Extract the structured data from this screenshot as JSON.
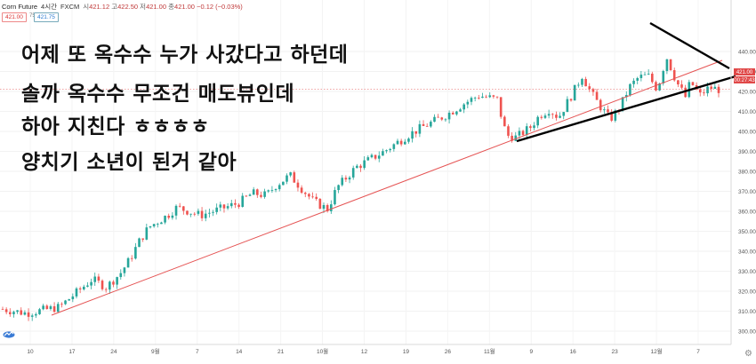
{
  "header": {
    "symbol": "Corn Future",
    "interval": "4시간",
    "exchange": "FXCM",
    "open_label": "시",
    "open": "421.12",
    "high_label": "고",
    "high": "422.50",
    "low_label": "저",
    "low": "421.00",
    "close_label": "종",
    "close": "421.00",
    "change": "−0.12 (−0.03%)",
    "sell_price": "421.00",
    "spread": "75",
    "buy_price": "421.75"
  },
  "overlay_text": [
    "어제 또 옥수수 누가 사갔다고 하던데",
    "솔까 옥수수 무조건 매도뷰인데",
    "하아 지친다 ㅎㅎㅎㅎ",
    "양치기 소년이 된거 같아"
  ],
  "price_tags": {
    "last": "421.00",
    "countdown": "00:27:43"
  },
  "colors": {
    "up": "#26a69a",
    "down": "#ef5350",
    "trendline": "#e55353",
    "price_tag": "#e04848",
    "countdown_tag": "#e04848"
  },
  "chart_data": {
    "type": "candlestick",
    "ylim": [
      296,
      446
    ],
    "y_ticks": [
      300,
      310,
      320,
      330,
      340,
      350,
      360,
      370,
      380,
      390,
      400,
      410,
      420,
      430,
      440
    ],
    "x_tick_labels": [
      "10",
      "17",
      "24",
      "9월",
      "7",
      "14",
      "21",
      "10월",
      "12",
      "19",
      "26",
      "11월",
      "9",
      "16",
      "23",
      "12월",
      "7"
    ],
    "last_price": 421.0,
    "price_path": [
      [
        0,
        311
      ],
      [
        5,
        309
      ],
      [
        12,
        312
      ],
      [
        15,
        318
      ],
      [
        19,
        326
      ],
      [
        22,
        322
      ],
      [
        25,
        329
      ],
      [
        27,
        336
      ],
      [
        29,
        345
      ],
      [
        31,
        352
      ],
      [
        33,
        355
      ],
      [
        35,
        358
      ],
      [
        37,
        362
      ],
      [
        42,
        358
      ],
      [
        50,
        364
      ],
      [
        53,
        369
      ],
      [
        56,
        368
      ],
      [
        58,
        373
      ],
      [
        61,
        378
      ],
      [
        64,
        370
      ],
      [
        66,
        365
      ],
      [
        69,
        361
      ],
      [
        71,
        372
      ],
      [
        75,
        382
      ],
      [
        81,
        390
      ],
      [
        86,
        398
      ],
      [
        89,
        402
      ],
      [
        94,
        408
      ],
      [
        98,
        414
      ],
      [
        101,
        418
      ],
      [
        105,
        416
      ],
      [
        106,
        406
      ],
      [
        107,
        398
      ],
      [
        109,
        397
      ],
      [
        112,
        402
      ],
      [
        114,
        408
      ],
      [
        116,
        411
      ],
      [
        118,
        407
      ],
      [
        121,
        419
      ],
      [
        123,
        428
      ],
      [
        125,
        419
      ],
      [
        127,
        412
      ],
      [
        129,
        406
      ],
      [
        131,
        412
      ],
      [
        133,
        422
      ],
      [
        135,
        427
      ],
      [
        137,
        428
      ],
      [
        139,
        421
      ],
      [
        140,
        430
      ],
      [
        141,
        437
      ],
      [
        143,
        425
      ],
      [
        145,
        417
      ],
      [
        146,
        425
      ],
      [
        148,
        418
      ],
      [
        150,
        422
      ],
      [
        152,
        421
      ]
    ]
  },
  "trendline": {
    "label": ""
  }
}
